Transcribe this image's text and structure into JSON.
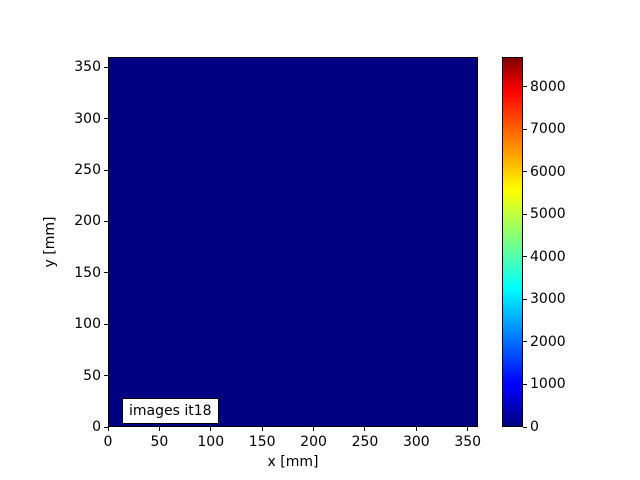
{
  "figure": {
    "background": "#ffffff",
    "plot_fill_color": "#000080",
    "text_color": "#000000"
  },
  "chart_data": {
    "type": "heatmap",
    "title": "",
    "xlabel": "x [mm]",
    "ylabel": "y [mm]",
    "xlim": [
      0,
      360
    ],
    "ylim": [
      0,
      360
    ],
    "xticks": [
      0,
      50,
      100,
      150,
      200,
      250,
      300,
      350
    ],
    "yticks": [
      0,
      50,
      100,
      150,
      200,
      250,
      300,
      350
    ],
    "grid": false,
    "annotation": "images it18",
    "field": {
      "uniform": true,
      "value": 0,
      "display_color": "#000080"
    },
    "colorbar": {
      "position": "right",
      "colormap": "jet",
      "vmin": 0,
      "vmax": 8700,
      "ticks": [
        0,
        1000,
        2000,
        3000,
        4000,
        5000,
        6000,
        7000,
        8000
      ],
      "gradient_stops": [
        {
          "at": 0.0,
          "color": "#000080"
        },
        {
          "at": 0.11,
          "color": "#0000ff"
        },
        {
          "at": 0.125,
          "color": "#0008ff"
        },
        {
          "at": 0.375,
          "color": "#00ffff"
        },
        {
          "at": 0.64,
          "color": "#ffff00"
        },
        {
          "at": 0.91,
          "color": "#ff0000"
        },
        {
          "at": 1.0,
          "color": "#800000"
        }
      ]
    }
  }
}
